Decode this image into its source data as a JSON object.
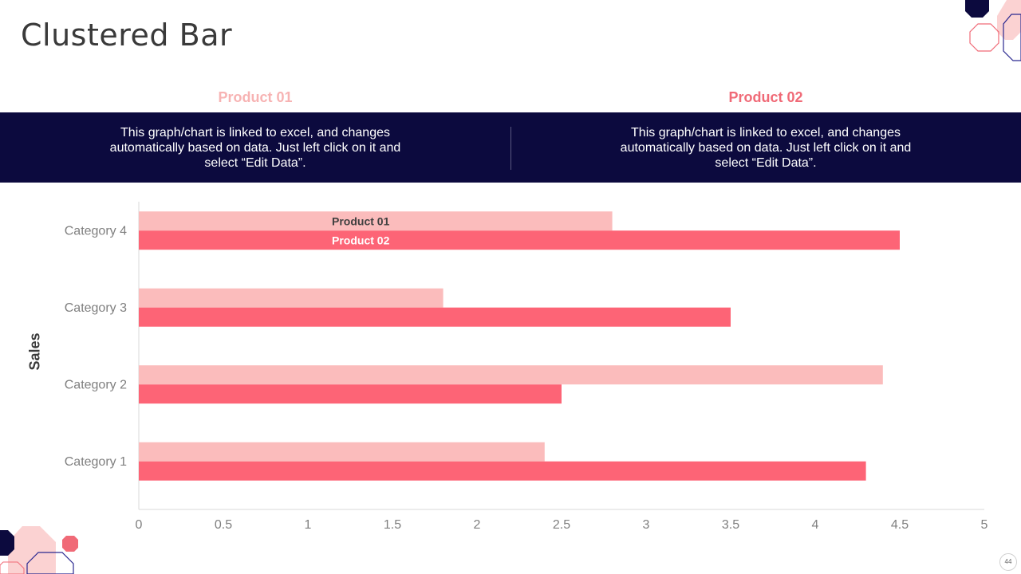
{
  "slide": {
    "title": "Clustered Bar",
    "page_number": "44"
  },
  "legend_headings": {
    "product_01": "Product 01",
    "product_02": "Product 02"
  },
  "band": {
    "left_text": "This graph/chart is linked to excel, and changes automatically based on data. Just left click on it and select “Edit Data”.",
    "right_text": "This graph/chart is linked to excel, and changes automatically based on data. Just left click on it and select “Edit Data”."
  },
  "colors": {
    "product_01": "#fbbcbc",
    "product_02": "#fd6476",
    "band": "#0c0a3e",
    "heading_01": "#f7b3b3",
    "heading_02": "#f06a77"
  },
  "chart_data": {
    "type": "bar",
    "orientation": "horizontal",
    "categories": [
      "Category 1",
      "Category 2",
      "Category 3",
      "Category 4"
    ],
    "series": [
      {
        "name": "Product 01",
        "values": [
          2.4,
          4.4,
          1.8,
          2.8
        ]
      },
      {
        "name": "Product 02",
        "values": [
          4.3,
          2.5,
          3.5,
          4.5
        ]
      }
    ],
    "xlim": [
      0,
      5
    ],
    "xticks": [
      "0",
      "0.5",
      "1",
      "1.5",
      "2",
      "2.5",
      "3",
      "3.5",
      "4",
      "4.5",
      "5"
    ],
    "ylabel": "Sales",
    "xlabel": "",
    "title": "",
    "grid": false,
    "series_labels_on_category": "Category 4"
  }
}
